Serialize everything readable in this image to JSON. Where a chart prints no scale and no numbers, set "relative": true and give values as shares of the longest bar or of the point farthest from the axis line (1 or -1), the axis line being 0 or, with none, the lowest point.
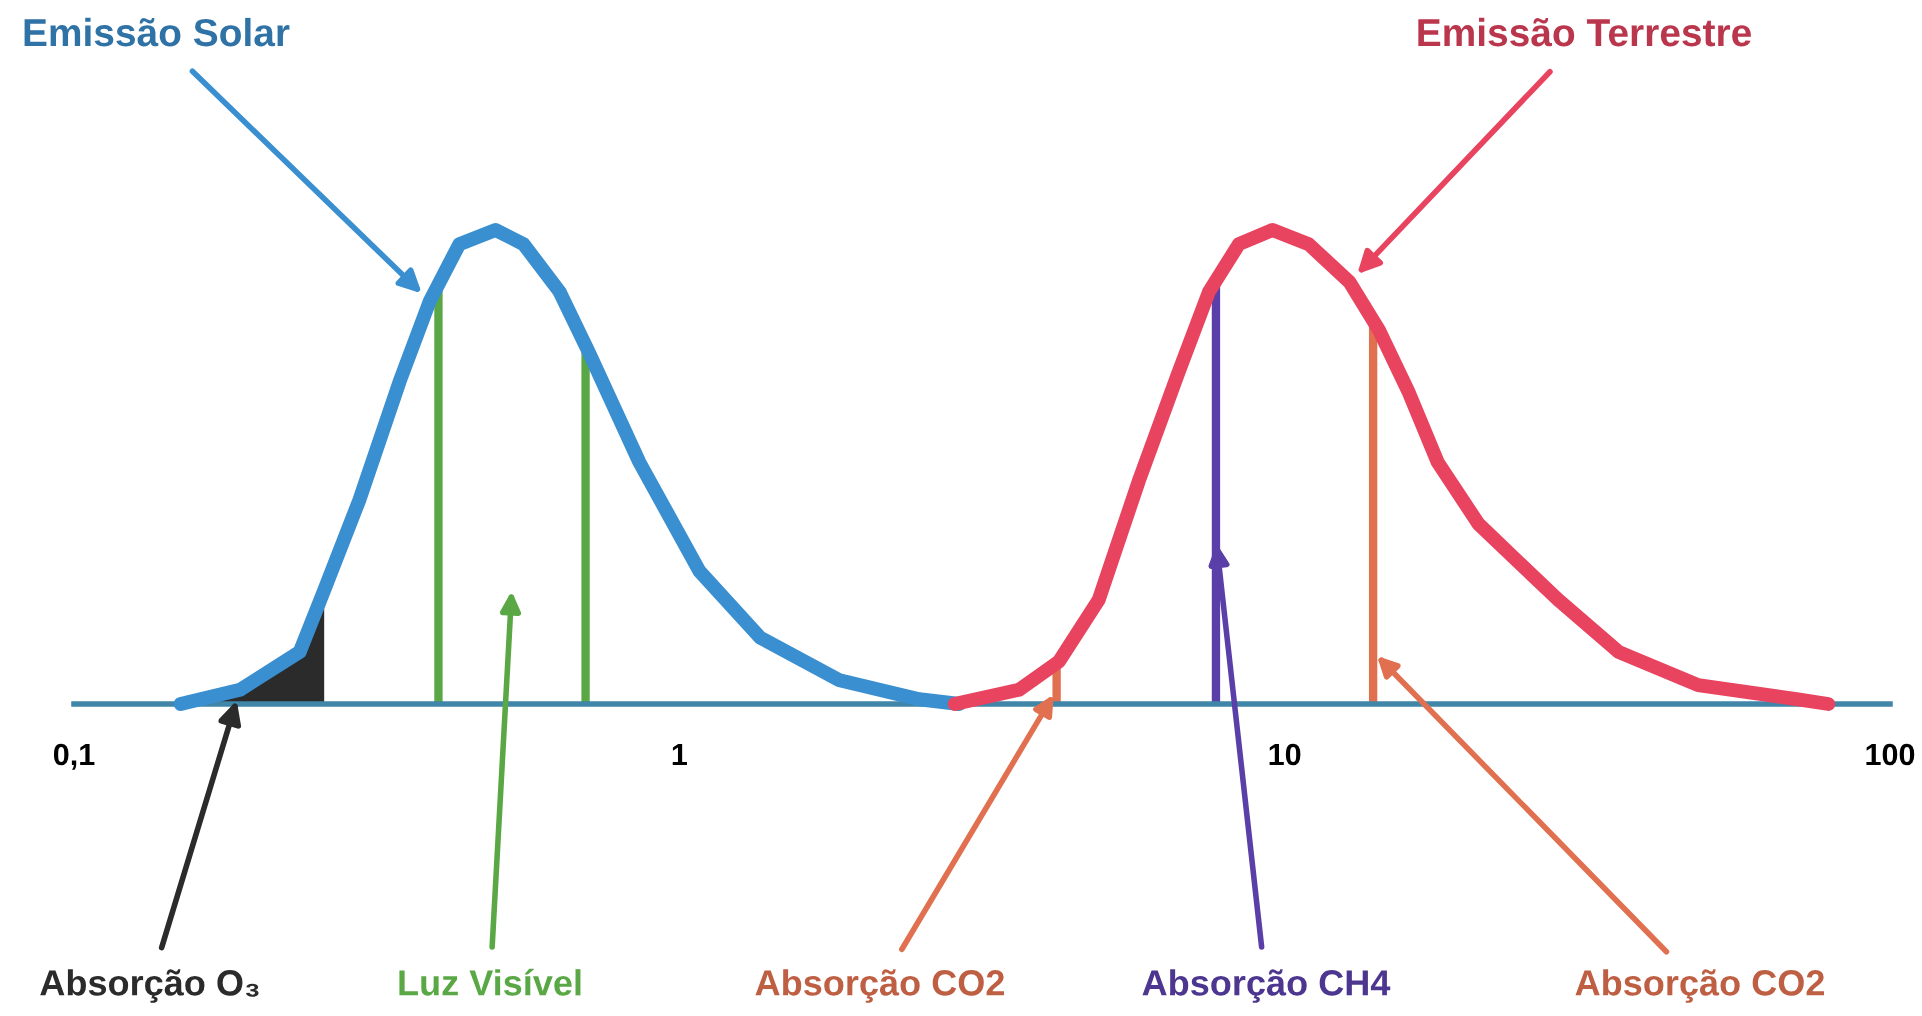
{
  "chart_data": {
    "type": "line",
    "relative": true,
    "log": "x",
    "xlim": [
      0.1,
      100
    ],
    "xticks": [
      {
        "value": 0.1,
        "label": "0,1"
      },
      1,
      10,
      100
    ],
    "grid": false,
    "series": [
      {
        "name": "Emissão Solar",
        "color": "#3a8fd0",
        "x": [
          0.15,
          0.188,
          0.236,
          0.259,
          0.296,
          0.345,
          0.387,
          0.433,
          0.497,
          0.553,
          0.634,
          0.71,
          0.859,
          1.08,
          1.36,
          1.84,
          2.49,
          2.9
        ],
        "values": [
          0,
          0.03,
          0.11,
          0.24,
          0.43,
          0.68,
          0.85,
          0.97,
          1,
          0.97,
          0.87,
          0.74,
          0.51,
          0.28,
          0.14,
          0.05,
          0.01,
          0
        ]
      },
      {
        "name": "Emissão Terrestre",
        "color": "#e8435f",
        "x": [
          2.85,
          3.64,
          4.24,
          4.93,
          5.74,
          6.68,
          7.5,
          8.4,
          9.55,
          10.96,
          12.8,
          14.3,
          16.0,
          17.9,
          20.9,
          24.3,
          28.3,
          35.6,
          48.2,
          70.5,
          79.1
        ],
        "values": [
          0,
          0.03,
          0.09,
          0.22,
          0.47,
          0.7,
          0.87,
          0.97,
          1,
          0.97,
          0.89,
          0.79,
          0.66,
          0.51,
          0.38,
          0.3,
          0.22,
          0.11,
          0.04,
          0.01,
          0
        ]
      },
      {
        "type": "area",
        "name": "Absorção O₃",
        "color": "#2b2b2b",
        "x": [
          0.15,
          0.188,
          0.236,
          0.259
        ],
        "values": [
          0,
          0.03,
          0.11,
          0.24
        ]
      }
    ],
    "annotations": [
      "Luz Visível"
    ],
    "ref_lines": [
      {
        "axis": "x",
        "value": 0.4,
        "color": "#5aa845"
      },
      {
        "axis": "x",
        "value": 0.7,
        "color": "#5aa845"
      },
      {
        "axis": "x",
        "value": 4.2,
        "label": "Absorção CO2",
        "color": "#e0704f"
      },
      {
        "axis": "x",
        "value": 7.7,
        "label": "Absorção CH4",
        "color": "#5b3fa8"
      },
      {
        "axis": "x",
        "value": 14,
        "label": "Absorção CO2",
        "color": "#e0704f"
      }
    ]
  }
}
